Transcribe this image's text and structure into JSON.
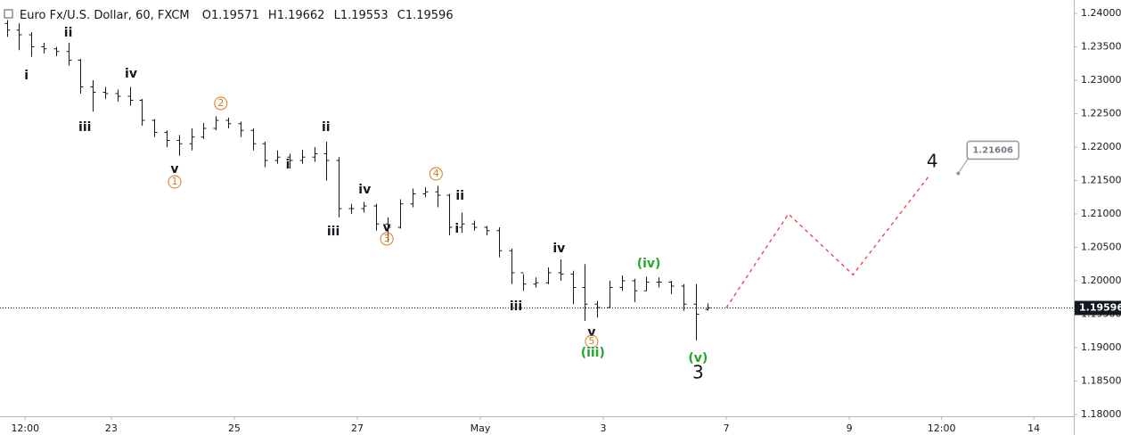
{
  "chart_data": {
    "type": "ohlc",
    "title": "Euro Fx/U.S. Dollar, 60, FXCM",
    "ohlc_prefixes": [
      "O",
      "H",
      "L",
      "C"
    ],
    "color": "#131722",
    "grid": false,
    "xlim": [
      -1.81,
      15.65
    ],
    "ylim": [
      1.17973,
      1.242
    ],
    "xticks": [
      {
        "value": -1.4,
        "label": "12:00"
      },
      {
        "value": 0,
        "label": "23"
      },
      {
        "value": 2,
        "label": "25"
      },
      {
        "value": 4,
        "label": "27"
      },
      {
        "value": 6,
        "label": "May"
      },
      {
        "value": 8,
        "label": "3"
      },
      {
        "value": 10,
        "label": "7"
      },
      {
        "value": 12,
        "label": "9"
      },
      {
        "value": 13.5,
        "label": "12:00"
      },
      {
        "value": 15,
        "label": "14"
      }
    ],
    "yticks": [
      {
        "value": 1.18,
        "label": "1.18000"
      },
      {
        "value": 1.185,
        "label": "1.18500"
      },
      {
        "value": 1.19,
        "label": "1.19000"
      },
      {
        "value": 1.195,
        "label": "1.19500"
      },
      {
        "value": 1.2,
        "label": "1.20000"
      },
      {
        "value": 1.205,
        "label": "1.20500"
      },
      {
        "value": 1.21,
        "label": "1.21000"
      },
      {
        "value": 1.215,
        "label": "1.21500"
      },
      {
        "value": 1.22,
        "label": "1.22000"
      },
      {
        "value": 1.225,
        "label": "1.22500"
      },
      {
        "value": 1.23,
        "label": "1.23000"
      },
      {
        "value": 1.235,
        "label": "1.23500"
      },
      {
        "value": 1.24,
        "label": "1.24000"
      }
    ],
    "x": [
      -1.7,
      -1.5,
      -1.3,
      -1.1,
      -0.9,
      -0.7,
      -0.5,
      -0.3,
      -0.1,
      0.1,
      0.3,
      0.5,
      0.7,
      0.9,
      1.1,
      1.3,
      1.5,
      1.7,
      1.9,
      2.1,
      2.3,
      2.5,
      2.7,
      2.9,
      3.1,
      3.3,
      3.5,
      3.7,
      3.9,
      4.1,
      4.3,
      4.5,
      4.7,
      4.9,
      5.1,
      5.3,
      5.5,
      5.7,
      5.9,
      6.1,
      6.3,
      6.5,
      6.7,
      6.9,
      7.1,
      7.3,
      7.5,
      7.7,
      7.9,
      8.1,
      8.3,
      8.5,
      8.7,
      8.9,
      9.1,
      9.3,
      9.5,
      9.7
    ],
    "open": [
      1.2385,
      1.2375,
      1.2368,
      1.235,
      1.2347,
      1.2343,
      1.233,
      1.229,
      1.2282,
      1.228,
      1.2276,
      1.227,
      1.224,
      1.2222,
      1.221,
      1.2205,
      1.2215,
      1.2228,
      1.224,
      1.2235,
      1.2225,
      1.2205,
      1.218,
      1.2185,
      1.218,
      1.2185,
      1.219,
      1.218,
      1.2108,
      1.2108,
      1.2112,
      1.2085,
      1.208,
      1.2115,
      1.213,
      1.2133,
      1.2128,
      1.208,
      1.2085,
      1.208,
      1.2075,
      1.2045,
      1.2012,
      1.1995,
      1.1997,
      1.2012,
      1.201,
      1.199,
      1.1965,
      1.196,
      1.199,
      1.2,
      1.1985,
      1.1998,
      1.1998,
      1.1992,
      1.1965,
      1.19571
    ],
    "high": [
      1.239,
      1.2385,
      1.2372,
      1.2356,
      1.235,
      1.2356,
      1.2332,
      1.23,
      1.229,
      1.2286,
      1.229,
      1.2272,
      1.2242,
      1.2225,
      1.2218,
      1.2228,
      1.2236,
      1.2246,
      1.2244,
      1.2238,
      1.2228,
      1.2208,
      1.2195,
      1.219,
      1.2196,
      1.22,
      1.2208,
      1.2185,
      1.2115,
      1.2118,
      1.2115,
      1.2095,
      1.2122,
      1.2138,
      1.214,
      1.2142,
      1.213,
      1.2102,
      1.209,
      1.2082,
      1.208,
      1.2048,
      1.201,
      1.2005,
      1.202,
      1.2032,
      1.2015,
      1.2025,
      1.197,
      1.2,
      1.2008,
      1.2003,
      1.2006,
      1.2005,
      1.2,
      1.1995,
      1.1995,
      1.19662
    ],
    "low": [
      1.2365,
      1.2345,
      1.2335,
      1.234,
      1.2336,
      1.2322,
      1.228,
      1.2253,
      1.2272,
      1.2268,
      1.2262,
      1.2232,
      1.2215,
      1.22,
      1.2187,
      1.2195,
      1.2212,
      1.2225,
      1.2228,
      1.2215,
      1.2195,
      1.217,
      1.2175,
      1.2168,
      1.2175,
      1.2178,
      1.215,
      1.2095,
      1.21,
      1.2102,
      1.2075,
      1.2058,
      1.2078,
      1.211,
      1.2125,
      1.211,
      1.2068,
      1.2072,
      1.2075,
      1.2068,
      1.2035,
      1.1995,
      1.1985,
      1.199,
      1.1995,
      1.2,
      1.1965,
      1.194,
      1.1945,
      1.196,
      1.1985,
      1.1968,
      1.1985,
      1.199,
      1.198,
      1.1955,
      1.1911,
      1.19553
    ],
    "close": [
      1.2375,
      1.2368,
      1.235,
      1.2347,
      1.2343,
      1.233,
      1.229,
      1.2282,
      1.228,
      1.2276,
      1.227,
      1.224,
      1.2222,
      1.221,
      1.2205,
      1.2215,
      1.2228,
      1.224,
      1.2235,
      1.2225,
      1.2205,
      1.218,
      1.2185,
      1.218,
      1.2185,
      1.219,
      1.218,
      1.2108,
      1.2108,
      1.2112,
      1.2085,
      1.208,
      1.2115,
      1.213,
      1.2133,
      1.2128,
      1.208,
      1.2085,
      1.208,
      1.2075,
      1.2045,
      1.2012,
      1.1995,
      1.1997,
      1.2012,
      1.201,
      1.199,
      1.1965,
      1.196,
      1.199,
      1.2,
      1.1985,
      1.1998,
      1.1998,
      1.1992,
      1.1965,
      1.195,
      1.19596
    ],
    "projection": {
      "color": "#f23645",
      "x": [
        10.0,
        11.01,
        12.06,
        13.29
      ],
      "values": [
        1.19596,
        1.21,
        1.2009,
        1.2156
      ]
    },
    "target": {
      "x": 13.77,
      "value": 1.21606
    },
    "annotations": [
      {
        "text": "i",
        "x": -1.38,
        "y": 1.23067,
        "kind": "minor"
      },
      {
        "text": "ii",
        "x": -0.7,
        "y": 1.23707,
        "kind": "minor"
      },
      {
        "text": "iii",
        "x": -0.43,
        "y": 1.22293,
        "kind": "minor"
      },
      {
        "text": "iv",
        "x": 0.32,
        "y": 1.23093,
        "kind": "minor"
      },
      {
        "text": "v",
        "x": 1.03,
        "y": 1.21667,
        "kind": "minor"
      },
      {
        "text": "1",
        "x": 1.03,
        "y": 1.2148,
        "kind": "circled"
      },
      {
        "text": "2",
        "x": 1.78,
        "y": 1.22653,
        "kind": "circled"
      },
      {
        "text": "i",
        "x": 2.87,
        "y": 1.21733,
        "kind": "minor"
      },
      {
        "text": "ii",
        "x": 3.49,
        "y": 1.22293,
        "kind": "minor"
      },
      {
        "text": "iii",
        "x": 3.61,
        "y": 1.20733,
        "kind": "minor"
      },
      {
        "text": "iv",
        "x": 4.12,
        "y": 1.2136,
        "kind": "minor"
      },
      {
        "text": "v",
        "x": 4.48,
        "y": 1.2079,
        "kind": "minor"
      },
      {
        "text": "3",
        "x": 4.48,
        "y": 1.20627,
        "kind": "circled"
      },
      {
        "text": "4",
        "x": 5.28,
        "y": 1.216,
        "kind": "circled"
      },
      {
        "text": "ii",
        "x": 5.67,
        "y": 1.21267,
        "kind": "minor"
      },
      {
        "text": "i",
        "x": 5.62,
        "y": 1.20773,
        "kind": "minor"
      },
      {
        "text": "iv",
        "x": 7.28,
        "y": 1.2048,
        "kind": "minor"
      },
      {
        "text": "iii",
        "x": 6.58,
        "y": 1.19613,
        "kind": "minor"
      },
      {
        "text": "(iv)",
        "x": 8.74,
        "y": 1.20253,
        "kind": "minute"
      },
      {
        "text": "v",
        "x": 7.81,
        "y": 1.19227,
        "kind": "minor"
      },
      {
        "text": "5",
        "x": 7.81,
        "y": 1.19093,
        "kind": "circled"
      },
      {
        "text": "(iii)",
        "x": 7.83,
        "y": 1.1892,
        "kind": "minute"
      },
      {
        "text": "(v)",
        "x": 9.54,
        "y": 1.1884,
        "kind": "minute"
      },
      {
        "text": "3",
        "x": 9.54,
        "y": 1.18613,
        "kind": "intermediate"
      },
      {
        "text": "4",
        "x": 13.35,
        "y": 1.21773,
        "kind": "intermediate"
      }
    ]
  }
}
